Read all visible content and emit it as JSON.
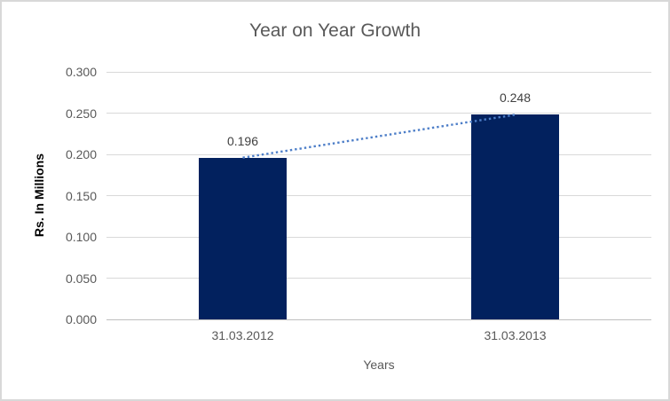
{
  "chart_data": {
    "type": "bar",
    "title": "Year on Year Growth",
    "categories": [
      "31.03.2012",
      "31.03.2013"
    ],
    "values": [
      0.196,
      0.248
    ],
    "data_labels": [
      "0.196",
      "0.248"
    ],
    "xlabel": "Years",
    "ylabel": "Rs. In Millions",
    "ylim": [
      0,
      0.3
    ],
    "ytick_labels": [
      "0.000",
      "0.050",
      "0.100",
      "0.150",
      "0.200",
      "0.250",
      "0.300"
    ],
    "grid": true,
    "legend": "none",
    "bar_color": "#02215e",
    "trendline": {
      "type": "linear",
      "style": "dotted",
      "color": "#4d7ec8"
    },
    "colors": {
      "title": "#595959",
      "tick_label": "#595959",
      "data_label": "#404040",
      "gridline": "#d9d9d9",
      "axis_line": "#bfbfbf",
      "y_axis_title": "#000000",
      "chart_border": "#d8d8d8",
      "background": "#ffffff"
    }
  }
}
